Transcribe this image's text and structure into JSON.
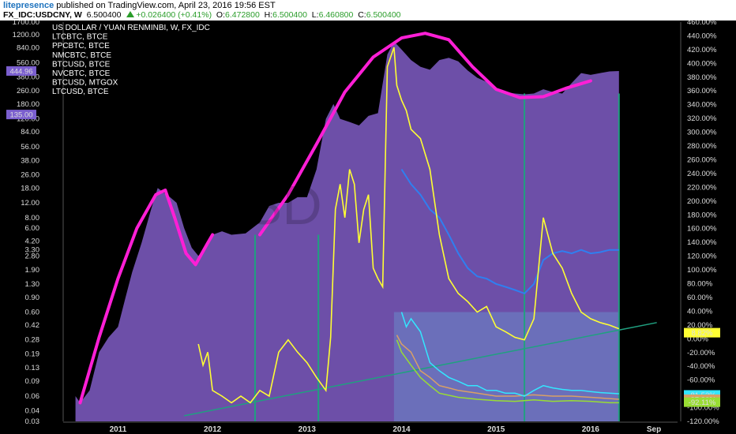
{
  "header": {
    "user": "litepresence",
    "published": " published on TradingView.com, April 23, 2016 19:56 EST",
    "symbol": "FX_IDC:USDCNY, W",
    "price": "6.500400",
    "change": "+0.026400 (+0.41%)",
    "o_label": "O:",
    "o": "6.472800",
    "h_label": "H:",
    "h": "6.500400",
    "l_label": "L:",
    "l": "6.460800",
    "c_label": "C:",
    "c": "6.500400"
  },
  "colors": {
    "area": "#6d4fa8",
    "magenta": "#ff1fd6",
    "yellow": "#ffff33",
    "blue": "#2f7ff0",
    "cyan": "#33e6ff",
    "orange": "#d9a066",
    "green": "#99dd33",
    "teal": "#20a080",
    "highlight": "#6a8ac8"
  },
  "chart_data": {
    "type": "line",
    "legend": [
      "US DOLLAR / YUAN RENMINBI, W, FX_IDC",
      "LTCBTC, BTCE",
      "PPCBTC, BTCE",
      "NMCBTC, BTCE",
      "BTCUSD, BTCE",
      "NVCBTC, BTCE",
      "BTCUSD, MTGOX",
      "LTCUSD, BTCE"
    ],
    "watermark": "USD",
    "left_axis": {
      "scale": "log",
      "ticks": [
        "1700.00",
        "1200.00",
        "840.00",
        "560.00",
        "380.00",
        "260.00",
        "180.00",
        "120.00",
        "84.00",
        "56.00",
        "38.00",
        "26.00",
        "18.00",
        "12.00",
        "8.00",
        "6.00",
        "4.20",
        "3.30",
        "2.80",
        "1.90",
        "1.30",
        "0.90",
        "0.60",
        "0.42",
        "0.28",
        "0.19",
        "0.13",
        "0.09",
        "0.06",
        "0.04",
        "0.03"
      ],
      "flags": [
        {
          "label": "444.96",
          "value": 444.96
        },
        {
          "label": "135.00",
          "value": 135
        }
      ]
    },
    "right_axis": {
      "unit": "%",
      "ticks": [
        "460.00%",
        "440.00%",
        "420.00%",
        "400.00%",
        "380.00%",
        "360.00%",
        "340.00%",
        "320.00%",
        "300.00%",
        "280.00%",
        "260.00%",
        "240.00%",
        "220.00%",
        "200.00%",
        "180.00%",
        "160.00%",
        "140.00%",
        "120.00%",
        "100.00%",
        "80.00%",
        "60.00%",
        "40.00%",
        "20.00%",
        "0.00%",
        "-20.00%",
        "-40.00%",
        "-60.00%",
        "-80.00%",
        "-100.00%",
        "-120.00%"
      ],
      "badges": [
        {
          "label": "8.82%",
          "value": 8.82,
          "color": "#ffff33"
        },
        {
          "label": "-81.53%",
          "value": -81.53,
          "color": "#33e6ff"
        },
        {
          "label": "-87.80%",
          "value": -87.8,
          "color": "#d9a066"
        },
        {
          "label": "-92.11%",
          "value": -92.11,
          "color": "#99dd33"
        }
      ]
    },
    "x_ticks": [
      "2011",
      "2012",
      "2013",
      "2014",
      "2015",
      "2016",
      "Sep"
    ],
    "x_tick_dates": [
      2011.0,
      2012.0,
      2013.0,
      2014.0,
      2015.0,
      2016.0,
      2016.67
    ],
    "x_range": [
      2010.42,
      2016.92
    ],
    "btc_area": [
      [
        2010.55,
        0.06
      ],
      [
        2010.6,
        0.05
      ],
      [
        2010.7,
        0.07
      ],
      [
        2010.8,
        0.2
      ],
      [
        2010.9,
        0.3
      ],
      [
        2011.0,
        0.4
      ],
      [
        2011.08,
        0.9
      ],
      [
        2011.15,
        1.8
      ],
      [
        2011.25,
        4
      ],
      [
        2011.35,
        10
      ],
      [
        2011.42,
        18
      ],
      [
        2011.48,
        16
      ],
      [
        2011.55,
        14
      ],
      [
        2011.62,
        12
      ],
      [
        2011.7,
        6
      ],
      [
        2011.78,
        3.5
      ],
      [
        2011.85,
        2.8
      ],
      [
        2011.92,
        3.3
      ],
      [
        2012.0,
        5
      ],
      [
        2012.1,
        5.5
      ],
      [
        2012.2,
        5
      ],
      [
        2012.35,
        5.2
      ],
      [
        2012.5,
        7
      ],
      [
        2012.6,
        11
      ],
      [
        2012.7,
        12
      ],
      [
        2012.8,
        12
      ],
      [
        2012.9,
        14
      ],
      [
        2013.0,
        14
      ],
      [
        2013.1,
        30
      ],
      [
        2013.2,
        120
      ],
      [
        2013.28,
        180
      ],
      [
        2013.35,
        120
      ],
      [
        2013.45,
        110
      ],
      [
        2013.55,
        100
      ],
      [
        2013.65,
        130
      ],
      [
        2013.75,
        140
      ],
      [
        2013.85,
        700
      ],
      [
        2013.92,
        1000
      ],
      [
        2014.0,
        800
      ],
      [
        2014.1,
        600
      ],
      [
        2014.2,
        500
      ],
      [
        2014.3,
        460
      ],
      [
        2014.4,
        600
      ],
      [
        2014.5,
        640
      ],
      [
        2014.6,
        580
      ],
      [
        2014.7,
        450
      ],
      [
        2014.8,
        370
      ],
      [
        2014.9,
        330
      ],
      [
        2015.0,
        280
      ],
      [
        2015.1,
        250
      ],
      [
        2015.2,
        240
      ],
      [
        2015.3,
        235
      ],
      [
        2015.4,
        240
      ],
      [
        2015.5,
        270
      ],
      [
        2015.6,
        250
      ],
      [
        2015.7,
        240
      ],
      [
        2015.8,
        320
      ],
      [
        2015.9,
        420
      ],
      [
        2016.0,
        400
      ],
      [
        2016.1,
        420
      ],
      [
        2016.2,
        440
      ],
      [
        2016.3,
        445
      ]
    ],
    "usdcny_curve": [
      [
        2010.6,
        0.05
      ],
      [
        2010.8,
        0.3
      ],
      [
        2011.0,
        1.5
      ],
      [
        2011.2,
        6
      ],
      [
        2011.4,
        15
      ],
      [
        2011.5,
        17
      ],
      [
        2011.6,
        8
      ],
      [
        2011.72,
        3
      ],
      [
        2011.82,
        2.2
      ],
      [
        2011.95,
        4
      ],
      [
        2012.0,
        5
      ]
    ],
    "magenta_arc": [
      [
        2012.5,
        5
      ],
      [
        2012.8,
        15
      ],
      [
        2013.1,
        60
      ],
      [
        2013.4,
        250
      ],
      [
        2013.7,
        650
      ],
      [
        2014.0,
        1100
      ],
      [
        2014.25,
        1250
      ],
      [
        2014.5,
        1050
      ],
      [
        2014.75,
        500
      ],
      [
        2015.0,
        270
      ],
      [
        2015.25,
        215
      ],
      [
        2015.5,
        220
      ],
      [
        2015.75,
        280
      ],
      [
        2016.0,
        340
      ]
    ],
    "ltcbtc": [
      [
        2011.85,
        0.25
      ],
      [
        2011.9,
        0.14
      ],
      [
        2011.95,
        0.2
      ],
      [
        2012.0,
        0.07
      ],
      [
        2012.1,
        0.06
      ],
      [
        2012.2,
        0.05
      ],
      [
        2012.3,
        0.06
      ],
      [
        2012.4,
        0.05
      ],
      [
        2012.5,
        0.07
      ],
      [
        2012.6,
        0.06
      ],
      [
        2012.7,
        0.2
      ],
      [
        2012.8,
        0.28
      ],
      [
        2012.9,
        0.2
      ],
      [
        2013.0,
        0.15
      ],
      [
        2013.1,
        0.1
      ],
      [
        2013.2,
        0.07
      ],
      [
        2013.25,
        0.3
      ],
      [
        2013.3,
        10
      ],
      [
        2013.35,
        20
      ],
      [
        2013.4,
        8
      ],
      [
        2013.45,
        30
      ],
      [
        2013.5,
        20
      ],
      [
        2013.55,
        4
      ],
      [
        2013.6,
        10
      ],
      [
        2013.65,
        15
      ],
      [
        2013.7,
        2
      ],
      [
        2013.75,
        1.5
      ],
      [
        2013.8,
        1.2
      ],
      [
        2013.85,
        500
      ],
      [
        2013.92,
        850
      ],
      [
        2013.95,
        300
      ],
      [
        2014.0,
        200
      ],
      [
        2014.05,
        150
      ],
      [
        2014.1,
        90
      ],
      [
        2014.2,
        70
      ],
      [
        2014.3,
        30
      ],
      [
        2014.4,
        5
      ],
      [
        2014.5,
        1.5
      ],
      [
        2014.6,
        1.0
      ],
      [
        2014.7,
        0.8
      ],
      [
        2014.8,
        0.6
      ],
      [
        2014.9,
        0.7
      ],
      [
        2015.0,
        0.4
      ],
      [
        2015.1,
        0.35
      ],
      [
        2015.2,
        0.3
      ],
      [
        2015.3,
        0.28
      ],
      [
        2015.4,
        0.5
      ],
      [
        2015.5,
        8
      ],
      [
        2015.6,
        3
      ],
      [
        2015.7,
        2
      ],
      [
        2015.8,
        1
      ],
      [
        2015.9,
        0.6
      ],
      [
        2016.0,
        0.5
      ],
      [
        2016.1,
        0.45
      ],
      [
        2016.2,
        0.42
      ],
      [
        2016.3,
        0.38
      ]
    ],
    "btcusd_blue": [
      [
        2014.0,
        30
      ],
      [
        2014.1,
        20
      ],
      [
        2014.2,
        15
      ],
      [
        2014.3,
        10
      ],
      [
        2014.4,
        8
      ],
      [
        2014.5,
        5
      ],
      [
        2014.6,
        3
      ],
      [
        2014.7,
        2
      ],
      [
        2014.8,
        1.6
      ],
      [
        2014.9,
        1.5
      ],
      [
        2015.0,
        1.3
      ],
      [
        2015.1,
        1.2
      ],
      [
        2015.2,
        1.1
      ],
      [
        2015.3,
        1.0
      ],
      [
        2015.4,
        1.3
      ],
      [
        2015.5,
        2.5
      ],
      [
        2015.6,
        3
      ],
      [
        2015.7,
        3.2
      ],
      [
        2015.8,
        3.0
      ],
      [
        2015.9,
        3.3
      ],
      [
        2016.0,
        3.0
      ],
      [
        2016.1,
        3.1
      ],
      [
        2016.2,
        3.3
      ],
      [
        2016.3,
        3.3
      ]
    ],
    "nvcbtc_cyan": [
      [
        2014.0,
        0.6
      ],
      [
        2014.05,
        0.4
      ],
      [
        2014.1,
        0.5
      ],
      [
        2014.2,
        0.35
      ],
      [
        2014.3,
        0.15
      ],
      [
        2014.4,
        0.12
      ],
      [
        2014.5,
        0.1
      ],
      [
        2014.6,
        0.09
      ],
      [
        2014.7,
        0.08
      ],
      [
        2014.8,
        0.08
      ],
      [
        2014.9,
        0.07
      ],
      [
        2015.0,
        0.07
      ],
      [
        2015.1,
        0.065
      ],
      [
        2015.2,
        0.065
      ],
      [
        2015.3,
        0.06
      ],
      [
        2015.4,
        0.07
      ],
      [
        2015.5,
        0.08
      ],
      [
        2015.6,
        0.075
      ],
      [
        2015.7,
        0.072
      ],
      [
        2015.8,
        0.07
      ],
      [
        2015.9,
        0.07
      ],
      [
        2016.0,
        0.068
      ],
      [
        2016.1,
        0.066
      ],
      [
        2016.2,
        0.065
      ],
      [
        2016.3,
        0.064
      ]
    ],
    "orange_line": [
      [
        2013.95,
        0.32
      ],
      [
        2014.0,
        0.25
      ],
      [
        2014.1,
        0.2
      ],
      [
        2014.2,
        0.12
      ],
      [
        2014.3,
        0.1
      ],
      [
        2014.4,
        0.08
      ],
      [
        2014.5,
        0.075
      ],
      [
        2014.6,
        0.07
      ],
      [
        2014.8,
        0.065
      ],
      [
        2015.0,
        0.06
      ],
      [
        2015.2,
        0.06
      ],
      [
        2015.4,
        0.062
      ],
      [
        2015.6,
        0.06
      ],
      [
        2015.8,
        0.06
      ],
      [
        2016.0,
        0.058
      ],
      [
        2016.2,
        0.056
      ],
      [
        2016.3,
        0.055
      ]
    ],
    "green_line": [
      [
        2013.95,
        0.28
      ],
      [
        2014.0,
        0.2
      ],
      [
        2014.1,
        0.14
      ],
      [
        2014.2,
        0.1
      ],
      [
        2014.3,
        0.08
      ],
      [
        2014.4,
        0.065
      ],
      [
        2014.6,
        0.058
      ],
      [
        2014.8,
        0.055
      ],
      [
        2015.0,
        0.053
      ],
      [
        2015.2,
        0.052
      ],
      [
        2015.4,
        0.054
      ],
      [
        2015.6,
        0.052
      ],
      [
        2015.8,
        0.053
      ],
      [
        2016.0,
        0.052
      ],
      [
        2016.2,
        0.05
      ],
      [
        2016.3,
        0.05
      ]
    ],
    "trendline": [
      [
        2011.7,
        0.035
      ],
      [
        2016.7,
        0.45
      ]
    ],
    "teal_verticals": [
      2012.45,
      2013.12,
      2015.3,
      2016.3
    ]
  }
}
